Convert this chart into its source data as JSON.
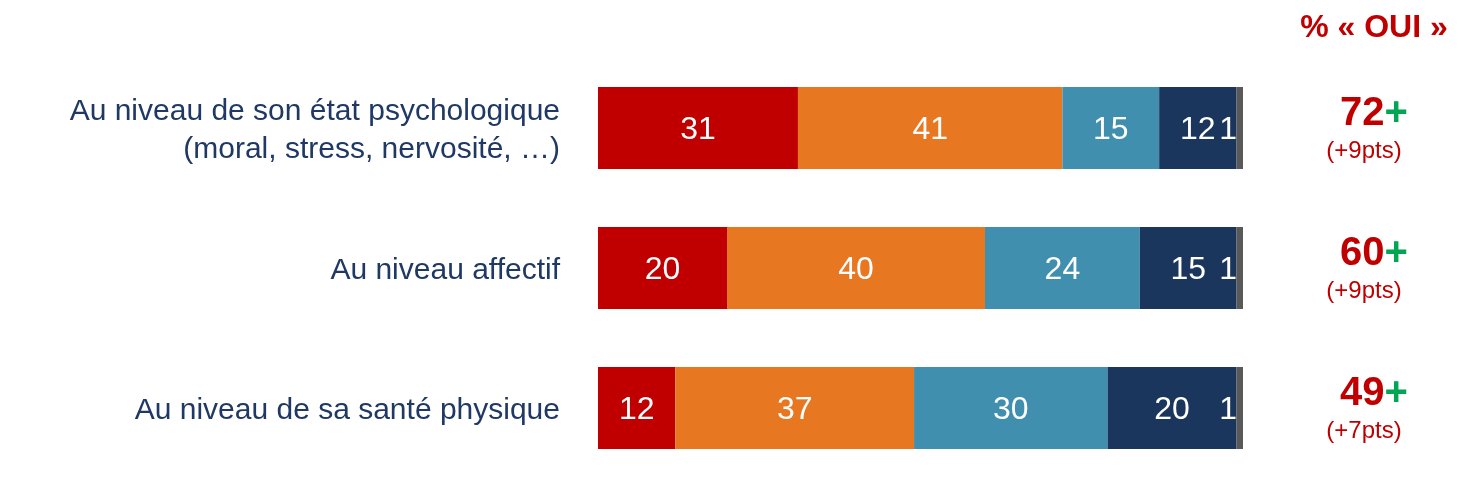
{
  "chart_data": {
    "type": "bar",
    "orientation": "horizontal",
    "stacked": true,
    "categories": [
      "Au niveau de son état psychologique\n(moral, stress, nervosité, …)",
      "Au niveau affectif",
      "Au niveau de sa santé physique"
    ],
    "series": [
      {
        "color": "#c00000",
        "values": [
          31,
          20,
          12
        ]
      },
      {
        "color": "#e87722",
        "values": [
          41,
          40,
          37
        ]
      },
      {
        "color": "#418fae",
        "values": [
          15,
          24,
          30
        ]
      },
      {
        "color": "#1b365d",
        "values": [
          12,
          15,
          20
        ]
      },
      {
        "color": "#595959",
        "values": [
          1,
          1,
          1
        ]
      }
    ],
    "xlim": [
      0,
      100
    ],
    "data_labels": true,
    "annotations": [
      "% « OUI »",
      "72+",
      "(+9pts)",
      "60+",
      "(+9pts)",
      "49+",
      "(+7pts)"
    ]
  }
}
